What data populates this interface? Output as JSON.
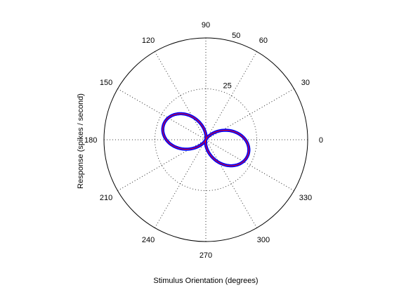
{
  "chart_data": {
    "type": "polar-line",
    "xlabel": "Stimulus Orientation (degrees)",
    "ylabel": "Response (spikes / second)",
    "rmax": 50,
    "radial_ticks": [
      25,
      50
    ],
    "radial_tick_labels": [
      "25",
      "50"
    ],
    "angle_ticks": [
      0,
      30,
      60,
      90,
      120,
      150,
      180,
      210,
      240,
      270,
      300,
      330
    ],
    "angle_tick_labels": [
      "0",
      "30",
      "60",
      "90",
      "120",
      "150",
      "180",
      "210",
      "240",
      "270",
      "300",
      "330"
    ],
    "grid": true,
    "series": [
      {
        "color": "#0000ff",
        "marker": "dot",
        "model": "r = a*cos(theta-phi)^2",
        "preferred_orientation_deg": -20,
        "peak_response": 22
      },
      {
        "color": "#ff0000",
        "marker": "line",
        "model": "r = a*cos(theta-phi)^2",
        "preferred_orientation_deg": -20,
        "peak_response": 22
      }
    ]
  }
}
